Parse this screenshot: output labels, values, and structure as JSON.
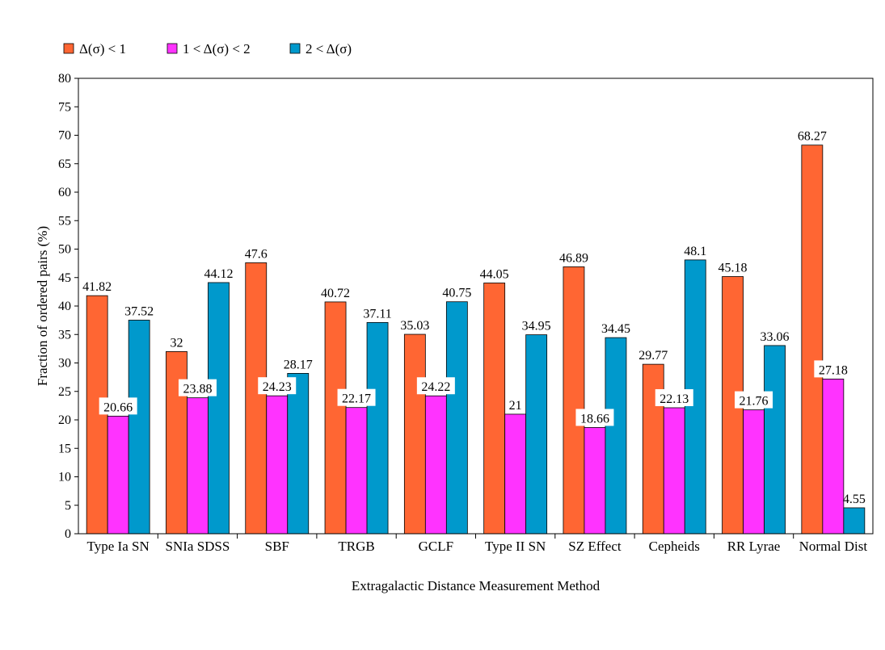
{
  "chart_data": {
    "type": "bar",
    "title": "",
    "xlabel": "Extragalactic Distance Measurement Method",
    "ylabel": "Fraction of ordered pairs (%)",
    "ylim": [
      0,
      80
    ],
    "ytick_step": 5,
    "legend_position": "top-left",
    "categories": [
      "Type Ia SN",
      "SNIa SDSS",
      "SBF",
      "TRGB",
      "GCLF",
      "Type II SN",
      "SZ Effect",
      "Cepheids",
      "RR Lyrae",
      "Normal Dist"
    ],
    "series": [
      {
        "name": "Δ(σ) < 1",
        "color": "#ff6633",
        "values": [
          41.82,
          32,
          47.6,
          40.72,
          35.03,
          44.05,
          46.89,
          29.77,
          45.18,
          68.27
        ],
        "labels": [
          "41.82",
          "32",
          "47.6",
          "40.72",
          "35.03",
          "44.05",
          "46.89",
          "29.77",
          "45.18",
          "68.27"
        ]
      },
      {
        "name": "1 < Δ(σ) < 2",
        "color": "#ff33ff",
        "values": [
          20.66,
          23.88,
          24.23,
          22.17,
          24.22,
          21,
          18.66,
          22.13,
          21.76,
          27.18
        ],
        "labels": [
          "20.66",
          "23.88",
          "24.23",
          "22.17",
          "24.22",
          "21",
          "18.66",
          "22.13",
          "21.76",
          "27.18"
        ]
      },
      {
        "name": "2 < Δ(σ)",
        "color": "#0099cc",
        "values": [
          37.52,
          44.12,
          28.17,
          37.11,
          40.75,
          34.95,
          34.45,
          48.1,
          33.06,
          4.55
        ],
        "labels": [
          "37.52",
          "44.12",
          "28.17",
          "37.11",
          "40.75",
          "34.95",
          "34.45",
          "48.1",
          "33.06",
          "4.55"
        ]
      }
    ]
  }
}
